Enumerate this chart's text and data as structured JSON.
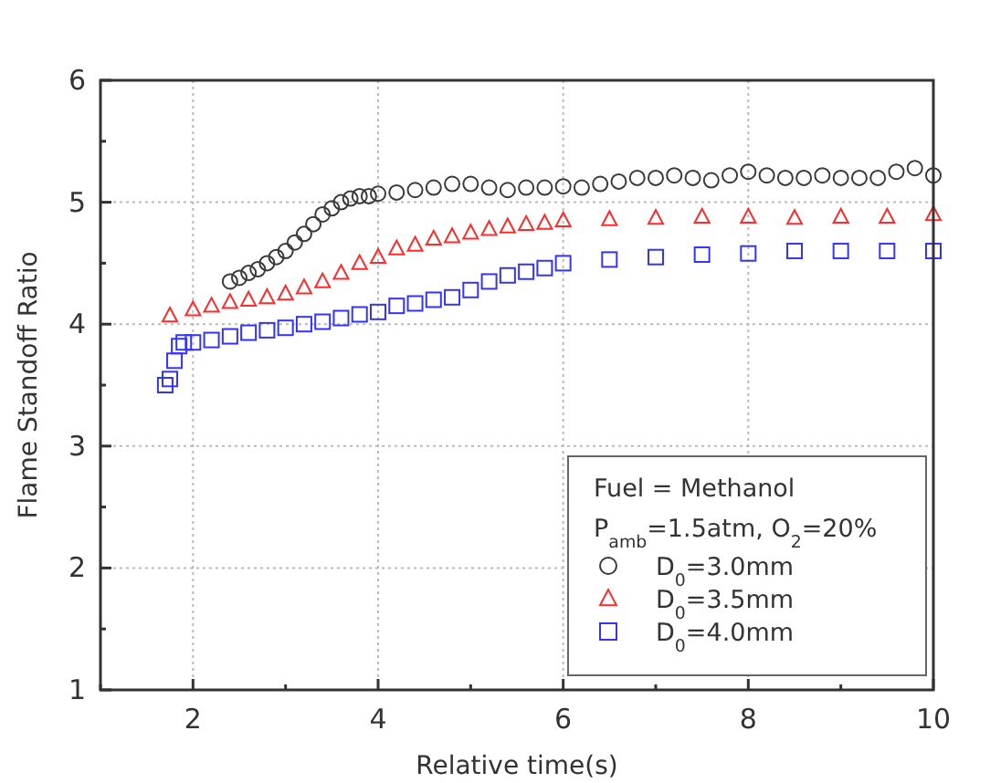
{
  "chart_data": {
    "type": "scatter",
    "xlabel": "Relative time(s)",
    "ylabel": "Flame Standoff Ratio",
    "xlim": [
      1,
      10
    ],
    "xticks": [
      {
        "value": 1,
        "label": null
      },
      2,
      {
        "value": 3,
        "label": null
      },
      4,
      {
        "value": 5,
        "label": null
      },
      6,
      {
        "value": 7,
        "label": null
      },
      8,
      {
        "value": 9,
        "label": null
      },
      10
    ],
    "ylim": [
      1,
      6
    ],
    "yticks": [
      1,
      {
        "value": 1.5,
        "label": null
      },
      2,
      {
        "value": 2.5,
        "label": null
      },
      3,
      {
        "value": 3.5,
        "label": null
      },
      4,
      {
        "value": 4.5,
        "label": null
      },
      5,
      {
        "value": 5.5,
        "label": null
      },
      6
    ],
    "grid": true,
    "legend": "bottom right",
    "legend_title": "Fuel = Methanol",
    "annotations": [
      "P$_{amb}$=1.5atm, O$_{2}$=20%"
    ],
    "series": [
      {
        "name": "D$_{0}$=3.0mm",
        "color": "#3a3a3a",
        "marker": "circle",
        "x": [
          2.4,
          2.5,
          2.6,
          2.7,
          2.8,
          2.9,
          3.0,
          3.1,
          3.2,
          3.3,
          3.4,
          3.5,
          3.6,
          3.7,
          3.8,
          3.9,
          4.0,
          4.2,
          4.4,
          4.6,
          4.8,
          5.0,
          5.2,
          5.4,
          5.6,
          5.8,
          6.0,
          6.2,
          6.4,
          6.6,
          6.8,
          7.0,
          7.2,
          7.4,
          7.6,
          7.8,
          8.0,
          8.2,
          8.4,
          8.6,
          8.8,
          9.0,
          9.2,
          9.4,
          9.6,
          9.8,
          10.0
        ],
        "values": [
          4.35,
          4.38,
          4.42,
          4.45,
          4.5,
          4.55,
          4.6,
          4.67,
          4.74,
          4.82,
          4.9,
          4.95,
          5.0,
          5.03,
          5.05,
          5.05,
          5.07,
          5.08,
          5.1,
          5.12,
          5.15,
          5.15,
          5.12,
          5.1,
          5.12,
          5.12,
          5.13,
          5.12,
          5.15,
          5.17,
          5.2,
          5.2,
          5.22,
          5.2,
          5.18,
          5.22,
          5.25,
          5.22,
          5.2,
          5.2,
          5.22,
          5.2,
          5.2,
          5.2,
          5.25,
          5.28,
          5.22
        ]
      },
      {
        "name": "D$_{0}$=3.5mm",
        "color": "#ff2a2a",
        "marker": "triangle",
        "x": [
          1.75,
          2.0,
          2.2,
          2.4,
          2.6,
          2.8,
          3.0,
          3.2,
          3.4,
          3.6,
          3.8,
          4.0,
          4.2,
          4.4,
          4.6,
          4.8,
          5.0,
          5.2,
          5.4,
          5.6,
          5.8,
          6.0,
          6.5,
          7.0,
          7.5,
          8.0,
          8.5,
          9.0,
          9.5,
          10.0
        ],
        "values": [
          4.07,
          4.12,
          4.15,
          4.18,
          4.2,
          4.22,
          4.25,
          4.3,
          4.35,
          4.42,
          4.5,
          4.55,
          4.62,
          4.65,
          4.7,
          4.72,
          4.75,
          4.78,
          4.8,
          4.82,
          4.83,
          4.85,
          4.86,
          4.87,
          4.88,
          4.88,
          4.87,
          4.88,
          4.88,
          4.9
        ]
      },
      {
        "name": "D$_{0}$=4.0mm",
        "color": "#3333ff",
        "marker": "square",
        "x": [
          1.7,
          1.75,
          1.8,
          1.85,
          1.9,
          2.0,
          2.2,
          2.4,
          2.6,
          2.8,
          3.0,
          3.2,
          3.4,
          3.6,
          3.8,
          4.0,
          4.2,
          4.4,
          4.6,
          4.8,
          5.0,
          5.2,
          5.4,
          5.6,
          5.8,
          6.0,
          6.5,
          7.0,
          7.5,
          8.0,
          8.5,
          9.0,
          9.5,
          10.0
        ],
        "values": [
          3.5,
          3.55,
          3.7,
          3.82,
          3.85,
          3.85,
          3.87,
          3.9,
          3.93,
          3.95,
          3.97,
          4.0,
          4.02,
          4.05,
          4.08,
          4.1,
          4.15,
          4.17,
          4.2,
          4.22,
          4.28,
          4.35,
          4.4,
          4.43,
          4.46,
          4.5,
          4.53,
          4.55,
          4.57,
          4.58,
          4.6,
          4.6,
          4.6,
          4.6
        ]
      }
    ]
  }
}
